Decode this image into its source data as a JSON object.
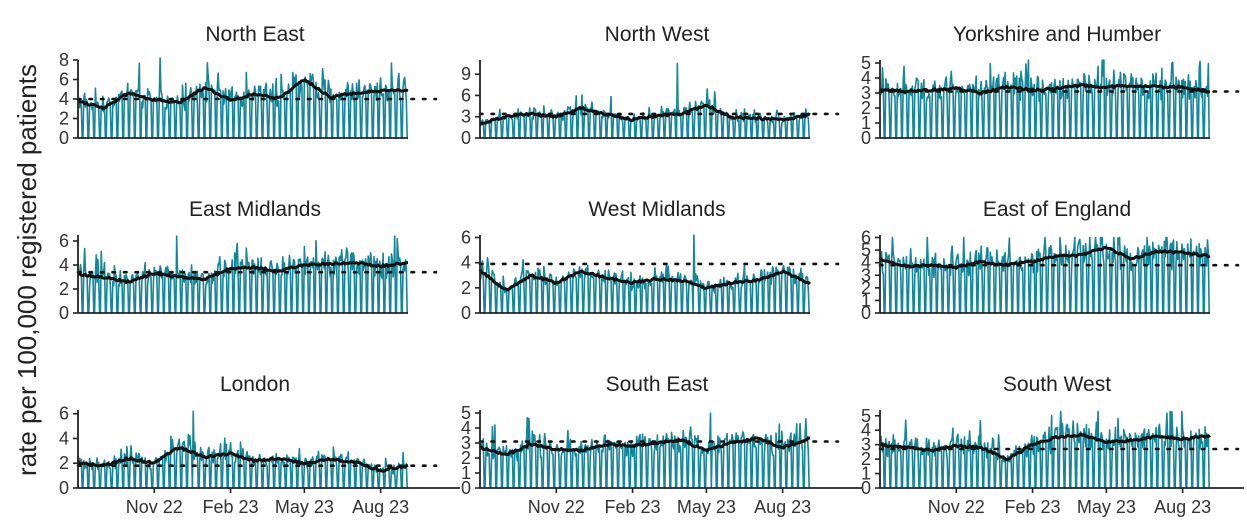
{
  "figure": {
    "ylabel": "rate per 100,000 registered patients",
    "x_tick_labels": [
      "Nov 22",
      "Feb 23",
      "May 23",
      "Aug 23"
    ]
  },
  "colors": {
    "daily_series": "#13869a",
    "rolling_mean": "#111111",
    "reference_line": "#111111",
    "axis": "#222222"
  },
  "chart_data": [
    {
      "type": "line",
      "title": "North East",
      "x": [
        "2022-08-01",
        "2023-09-03"
      ],
      "xticks": [
        "2022-11-01",
        "2023-02-01",
        "2023-05-01",
        "2023-08-01"
      ],
      "ylim": [
        0,
        8
      ],
      "yticks": [
        0,
        2,
        4,
        6,
        8
      ],
      "series": [
        {
          "kind": "daily",
          "x": [
            "2022-08-01",
            "2023-09-03"
          ],
          "y_range": [
            0,
            8.2
          ],
          "pattern": "weekly, drops to 0 each weekend"
        },
        {
          "kind": "rolling_mean",
          "x": [
            "2022-08-01",
            "2022-09-01",
            "2022-10-01",
            "2022-11-01",
            "2022-12-01",
            "2023-01-01",
            "2023-02-01",
            "2023-03-01",
            "2023-04-01",
            "2023-05-01",
            "2023-06-01",
            "2023-07-01",
            "2023-08-01",
            "2023-09-03"
          ],
          "y": [
            3.8,
            3.1,
            4.6,
            3.9,
            3.6,
            5.2,
            3.9,
            4.5,
            4.1,
            6.0,
            4.2,
            4.6,
            4.8,
            4.9
          ]
        },
        {
          "kind": "reference",
          "x": [
            "2022-08-01",
            "2023-09-25"
          ],
          "y": [
            4.0,
            4.0
          ]
        }
      ]
    },
    {
      "type": "line",
      "title": "North West",
      "x": [
        "2022-08-01",
        "2023-09-03"
      ],
      "xticks": [
        "2022-11-01",
        "2023-02-01",
        "2023-05-01",
        "2023-08-01"
      ],
      "ylim": [
        0,
        11
      ],
      "yticks": [
        0,
        3,
        6,
        9
      ],
      "series": [
        {
          "kind": "daily",
          "x": [
            "2022-08-01",
            "2023-09-03"
          ],
          "y_range": [
            0,
            10.5
          ],
          "pattern": "weekly, drops to 0 each weekend"
        },
        {
          "kind": "rolling_mean",
          "x": [
            "2022-08-01",
            "2022-09-01",
            "2022-10-01",
            "2022-11-01",
            "2022-12-01",
            "2023-01-01",
            "2023-02-01",
            "2023-03-01",
            "2023-04-01",
            "2023-05-01",
            "2023-06-01",
            "2023-07-01",
            "2023-08-01",
            "2023-09-03"
          ],
          "y": [
            2.0,
            3.0,
            3.4,
            3.0,
            4.2,
            3.3,
            2.6,
            3.1,
            3.4,
            4.6,
            2.9,
            2.8,
            2.5,
            3.3
          ]
        },
        {
          "kind": "reference",
          "x": [
            "2022-08-01",
            "2023-09-25"
          ],
          "y": [
            3.4,
            3.4
          ]
        }
      ]
    },
    {
      "type": "line",
      "title": "Yorkshire and Humber",
      "x": [
        "2022-08-01",
        "2023-09-03"
      ],
      "xticks": [
        "2022-11-01",
        "2023-02-01",
        "2023-05-01",
        "2023-08-01"
      ],
      "ylim": [
        0,
        5.2
      ],
      "yticks": [
        0,
        1,
        2,
        3,
        4,
        5
      ],
      "series": [
        {
          "kind": "daily",
          "x": [
            "2022-08-01",
            "2023-09-03"
          ],
          "y_range": [
            0,
            5.2
          ],
          "pattern": "weekly, drops to 0 each weekend"
        },
        {
          "kind": "rolling_mean",
          "x": [
            "2022-08-01",
            "2022-09-01",
            "2022-10-01",
            "2022-11-01",
            "2022-12-01",
            "2023-01-01",
            "2023-02-01",
            "2023-03-01",
            "2023-04-01",
            "2023-05-01",
            "2023-06-01",
            "2023-07-01",
            "2023-08-01",
            "2023-09-03"
          ],
          "y": [
            3.2,
            3.1,
            3.2,
            3.3,
            3.0,
            3.4,
            3.2,
            3.3,
            3.5,
            3.4,
            3.5,
            3.4,
            3.4,
            3.1
          ]
        },
        {
          "kind": "reference",
          "x": [
            "2022-08-01",
            "2023-09-25"
          ],
          "y": [
            3.1,
            3.1
          ]
        }
      ]
    },
    {
      "type": "line",
      "title": "East Midlands",
      "x": [
        "2022-08-01",
        "2023-09-03"
      ],
      "xticks": [
        "2022-11-01",
        "2023-02-01",
        "2023-05-01",
        "2023-08-01"
      ],
      "ylim": [
        0,
        6.5
      ],
      "yticks": [
        0,
        2,
        4,
        6
      ],
      "series": [
        {
          "kind": "daily",
          "x": [
            "2022-08-01",
            "2023-09-03"
          ],
          "y_range": [
            0,
            6.4
          ],
          "pattern": "weekly, drops to 0 each weekend"
        },
        {
          "kind": "rolling_mean",
          "x": [
            "2022-08-01",
            "2022-09-01",
            "2022-10-01",
            "2022-11-01",
            "2022-12-01",
            "2023-01-01",
            "2023-02-01",
            "2023-03-01",
            "2023-04-01",
            "2023-05-01",
            "2023-06-01",
            "2023-07-01",
            "2023-08-01",
            "2023-09-03"
          ],
          "y": [
            3.2,
            3.0,
            2.6,
            3.3,
            3.0,
            2.8,
            3.7,
            3.8,
            3.5,
            4.0,
            4.1,
            4.2,
            3.9,
            4.2
          ]
        },
        {
          "kind": "reference",
          "x": [
            "2022-08-01",
            "2023-09-25"
          ],
          "y": [
            3.4,
            3.4
          ]
        }
      ]
    },
    {
      "type": "line",
      "title": "West Midlands",
      "x": [
        "2022-08-01",
        "2023-09-03"
      ],
      "xticks": [
        "2022-11-01",
        "2023-02-01",
        "2023-05-01",
        "2023-08-01"
      ],
      "ylim": [
        0,
        6.2
      ],
      "yticks": [
        0,
        2,
        4,
        6
      ],
      "series": [
        {
          "kind": "daily",
          "x": [
            "2022-08-01",
            "2023-09-03"
          ],
          "y_range": [
            0,
            6.2
          ],
          "pattern": "weekly, drops to 0 each weekend"
        },
        {
          "kind": "rolling_mean",
          "x": [
            "2022-08-01",
            "2022-09-01",
            "2022-10-01",
            "2022-11-01",
            "2022-12-01",
            "2023-01-01",
            "2023-02-01",
            "2023-03-01",
            "2023-04-01",
            "2023-05-01",
            "2023-06-01",
            "2023-07-01",
            "2023-08-01",
            "2023-09-03"
          ],
          "y": [
            3.4,
            1.8,
            3.0,
            2.4,
            3.3,
            2.8,
            2.4,
            2.7,
            2.6,
            2.0,
            2.4,
            2.6,
            3.3,
            2.3
          ]
        },
        {
          "kind": "reference",
          "x": [
            "2022-08-01",
            "2023-09-25"
          ],
          "y": [
            3.9,
            3.9
          ]
        }
      ]
    },
    {
      "type": "line",
      "title": "East of England",
      "x": [
        "2022-08-01",
        "2023-09-03"
      ],
      "xticks": [
        "2022-11-01",
        "2023-02-01",
        "2023-05-01",
        "2023-08-01"
      ],
      "ylim": [
        0,
        6.2
      ],
      "yticks": [
        0,
        1,
        2,
        3,
        4,
        5,
        6
      ],
      "series": [
        {
          "kind": "daily",
          "x": [
            "2022-08-01",
            "2023-09-03"
          ],
          "y_range": [
            0,
            6.0
          ],
          "pattern": "weekly, drops to 0 each weekend"
        },
        {
          "kind": "rolling_mean",
          "x": [
            "2022-08-01",
            "2022-09-01",
            "2022-10-01",
            "2022-11-01",
            "2022-12-01",
            "2023-01-01",
            "2023-02-01",
            "2023-03-01",
            "2023-04-01",
            "2023-05-01",
            "2023-06-01",
            "2023-07-01",
            "2023-08-01",
            "2023-09-03"
          ],
          "y": [
            4.3,
            3.7,
            3.8,
            3.6,
            4.1,
            3.8,
            4.1,
            4.5,
            4.6,
            5.2,
            4.3,
            4.9,
            4.8,
            4.5
          ]
        },
        {
          "kind": "reference",
          "x": [
            "2022-08-01",
            "2023-09-25"
          ],
          "y": [
            3.8,
            3.8
          ]
        }
      ]
    },
    {
      "type": "line",
      "title": "London",
      "x": [
        "2022-08-01",
        "2023-09-03"
      ],
      "xticks": [
        "2022-11-01",
        "2023-02-01",
        "2023-05-01",
        "2023-08-01"
      ],
      "ylim": [
        0,
        6.3
      ],
      "yticks": [
        0,
        2,
        4,
        6
      ],
      "series": [
        {
          "kind": "daily",
          "x": [
            "2022-08-01",
            "2023-09-03"
          ],
          "y_range": [
            0,
            6.2
          ],
          "pattern": "weekly, drops to 0 each weekend"
        },
        {
          "kind": "rolling_mean",
          "x": [
            "2022-08-01",
            "2022-09-01",
            "2022-10-01",
            "2022-11-01",
            "2022-12-01",
            "2023-01-01",
            "2023-02-01",
            "2023-03-01",
            "2023-04-01",
            "2023-05-01",
            "2023-06-01",
            "2023-07-01",
            "2023-08-01",
            "2023-09-03"
          ],
          "y": [
            2.0,
            1.8,
            2.4,
            2.0,
            3.3,
            2.5,
            2.8,
            2.2,
            2.4,
            2.0,
            2.3,
            2.1,
            1.4,
            1.8
          ]
        },
        {
          "kind": "reference",
          "x": [
            "2022-08-01",
            "2023-09-25"
          ],
          "y": [
            1.8,
            1.8
          ]
        }
      ]
    },
    {
      "type": "line",
      "title": "South East",
      "x": [
        "2022-08-01",
        "2023-09-03"
      ],
      "xticks": [
        "2022-11-01",
        "2023-02-01",
        "2023-05-01",
        "2023-08-01"
      ],
      "ylim": [
        0,
        5.2
      ],
      "yticks": [
        0,
        1,
        2,
        3,
        4,
        5
      ],
      "series": [
        {
          "kind": "daily",
          "x": [
            "2022-08-01",
            "2023-09-03"
          ],
          "y_range": [
            0,
            5.0
          ],
          "pattern": "weekly, drops to 0 each weekend"
        },
        {
          "kind": "rolling_mean",
          "x": [
            "2022-08-01",
            "2022-09-01",
            "2022-10-01",
            "2022-11-01",
            "2022-12-01",
            "2023-01-01",
            "2023-02-01",
            "2023-03-01",
            "2023-04-01",
            "2023-05-01",
            "2023-06-01",
            "2023-07-01",
            "2023-08-01",
            "2023-09-03"
          ],
          "y": [
            2.7,
            2.2,
            2.9,
            2.6,
            2.5,
            2.9,
            2.8,
            3.0,
            3.2,
            2.5,
            3.0,
            3.3,
            2.7,
            3.3
          ]
        },
        {
          "kind": "reference",
          "x": [
            "2022-08-01",
            "2023-09-25"
          ],
          "y": [
            3.1,
            3.1
          ]
        }
      ]
    },
    {
      "type": "line",
      "title": "South West",
      "x": [
        "2022-08-01",
        "2023-09-03"
      ],
      "xticks": [
        "2022-11-01",
        "2023-02-01",
        "2023-05-01",
        "2023-08-01"
      ],
      "ylim": [
        0,
        5.4
      ],
      "yticks": [
        0,
        1,
        2,
        3,
        4,
        5
      ],
      "series": [
        {
          "kind": "daily",
          "x": [
            "2022-08-01",
            "2023-09-03"
          ],
          "y_range": [
            0,
            5.3
          ],
          "pattern": "weekly, drops to 0 each weekend"
        },
        {
          "kind": "rolling_mean",
          "x": [
            "2022-08-01",
            "2022-09-01",
            "2022-10-01",
            "2022-11-01",
            "2022-12-01",
            "2023-01-01",
            "2023-02-01",
            "2023-03-01",
            "2023-04-01",
            "2023-05-01",
            "2023-06-01",
            "2023-07-01",
            "2023-08-01",
            "2023-09-03"
          ],
          "y": [
            3.0,
            2.8,
            2.6,
            2.9,
            2.8,
            2.0,
            3.0,
            3.5,
            3.7,
            3.2,
            3.3,
            3.6,
            3.4,
            3.6
          ]
        },
        {
          "kind": "reference",
          "x": [
            "2022-08-01",
            "2023-09-25"
          ],
          "y": [
            2.7,
            2.7
          ]
        }
      ]
    }
  ]
}
